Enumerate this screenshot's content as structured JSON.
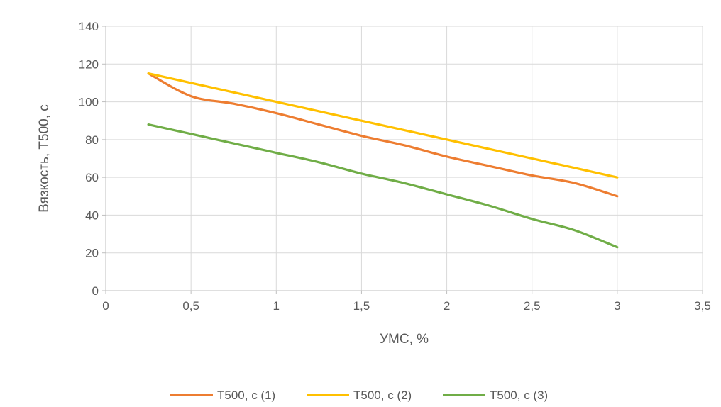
{
  "chart_data": {
    "type": "line",
    "title": "",
    "xlabel": "УМС, %",
    "ylabel": "Вязкость, Т500, с",
    "xlim": [
      0,
      3.5
    ],
    "ylim": [
      0,
      140
    ],
    "x_ticks": [
      0,
      0.5,
      1,
      1.5,
      2,
      2.5,
      3,
      3.5
    ],
    "x_tick_labels": [
      "0",
      "0,5",
      "1",
      "1,5",
      "2",
      "2,5",
      "3",
      "3,5"
    ],
    "y_ticks": [
      0,
      20,
      40,
      60,
      80,
      100,
      120,
      140
    ],
    "y_tick_labels": [
      "0",
      "20",
      "40",
      "60",
      "80",
      "100",
      "120",
      "140"
    ],
    "grid": true,
    "legend_position": "bottom",
    "series": [
      {
        "name": "Т500, с (1)",
        "color": "#ED7D31",
        "points": [
          [
            0.25,
            115
          ],
          [
            0.5,
            103
          ],
          [
            0.75,
            99
          ],
          [
            1,
            94
          ],
          [
            1.25,
            88
          ],
          [
            1.5,
            82
          ],
          [
            1.75,
            77
          ],
          [
            2,
            71
          ],
          [
            2.25,
            66
          ],
          [
            2.5,
            61
          ],
          [
            2.75,
            57
          ],
          [
            3,
            50
          ]
        ]
      },
      {
        "name": "Т500, с (2)",
        "color": "#FFC000",
        "points": [
          [
            0.25,
            115
          ],
          [
            0.5,
            110
          ],
          [
            1,
            100
          ],
          [
            1.5,
            90
          ],
          [
            2,
            80
          ],
          [
            2.5,
            70
          ],
          [
            3,
            60
          ]
        ]
      },
      {
        "name": "Т500, с (3)",
        "color": "#70AD47",
        "points": [
          [
            0.25,
            88
          ],
          [
            0.5,
            83
          ],
          [
            0.75,
            78
          ],
          [
            1,
            73
          ],
          [
            1.25,
            68
          ],
          [
            1.5,
            62
          ],
          [
            1.75,
            57
          ],
          [
            2,
            51
          ],
          [
            2.25,
            45
          ],
          [
            2.5,
            38
          ],
          [
            2.75,
            32
          ],
          [
            3,
            23
          ]
        ]
      }
    ]
  }
}
